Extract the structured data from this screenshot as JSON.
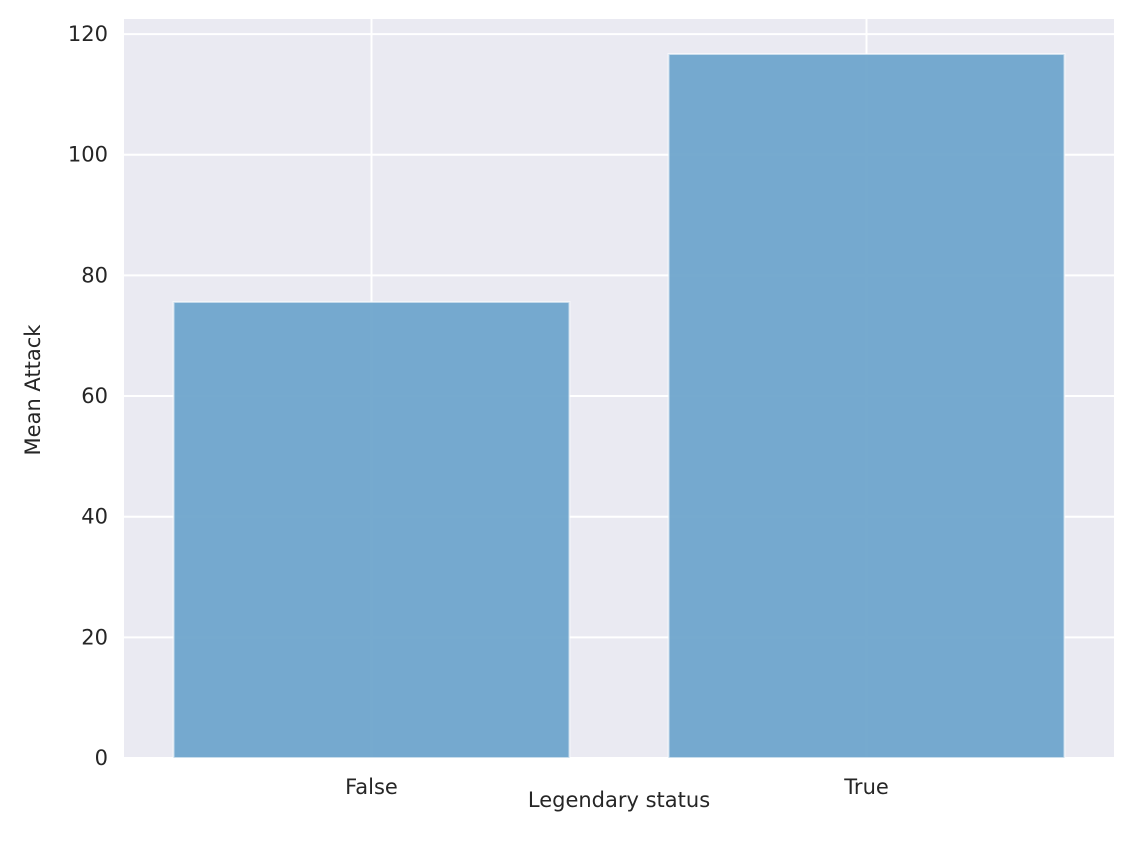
{
  "chart_data": {
    "type": "bar",
    "title": "",
    "xlabel": "Legendary status",
    "ylabel": "Mean Attack",
    "categories": [
      "False",
      "True"
    ],
    "values": [
      75.6,
      116.7
    ],
    "ylim": [
      0,
      122.5
    ],
    "yticks": [
      0,
      20,
      40,
      60,
      80,
      100,
      120
    ],
    "grid": true,
    "legend": "none",
    "colors": {
      "bar": "#6fa5cc",
      "bar_edge": "#ffffff",
      "plot_background": "#eaeaf2",
      "grid": "#ffffff",
      "text": "#262626"
    }
  }
}
